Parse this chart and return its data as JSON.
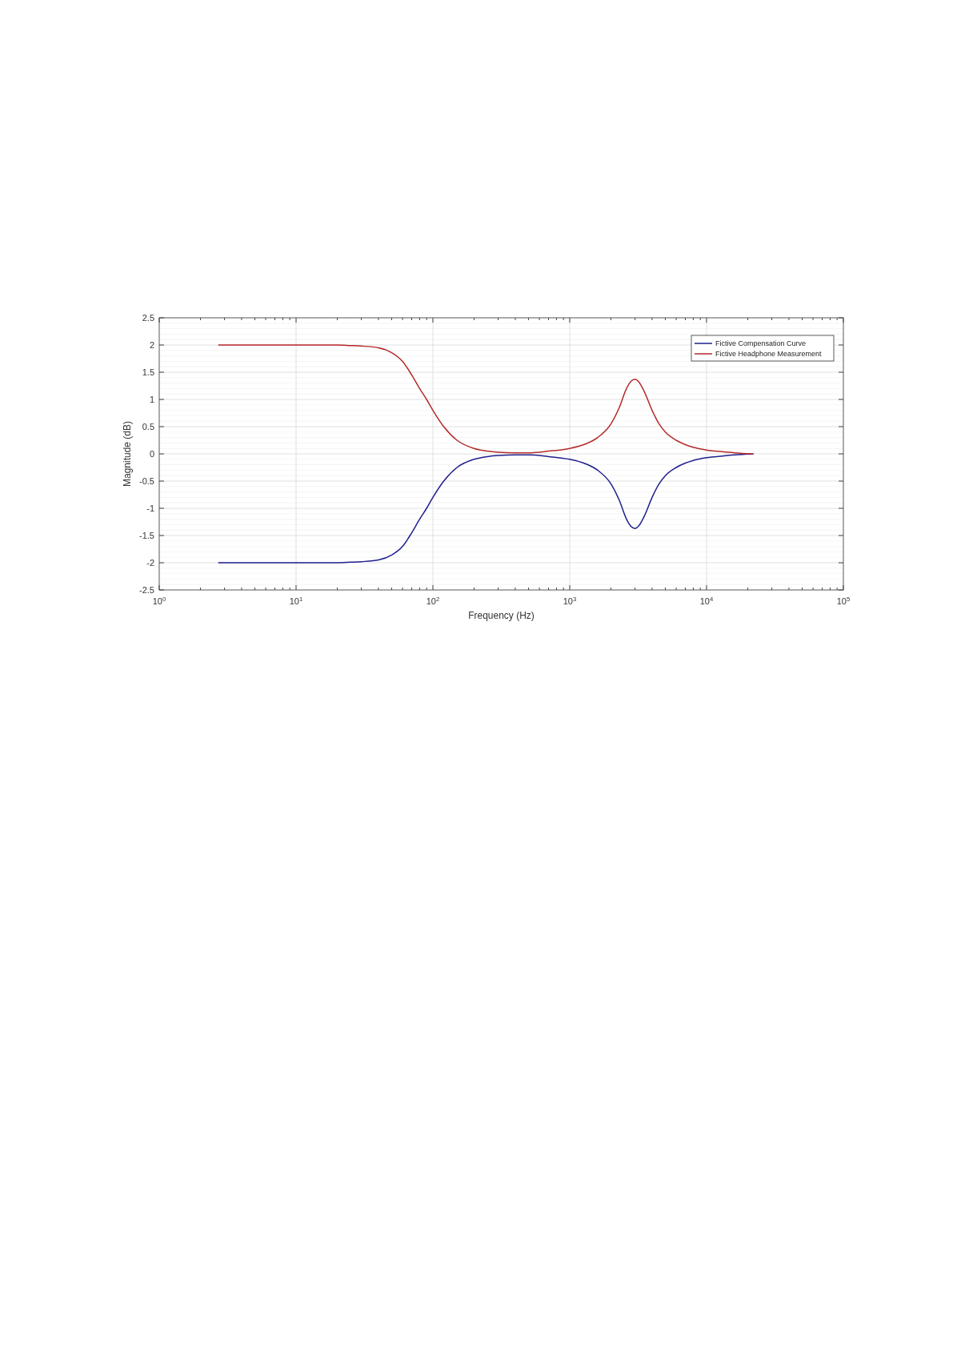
{
  "chart_data": {
    "type": "line",
    "xlabel": "Frequency (Hz)",
    "ylabel": "Magnitude (dB)",
    "log": "x",
    "xlim": [
      1,
      100000
    ],
    "xticks": [
      {
        "value": 1,
        "label": "10$^{0}$"
      },
      {
        "value": 10,
        "label": "10$^{1}$"
      },
      {
        "value": 100,
        "label": "10$^{2}$"
      },
      {
        "value": 1000,
        "label": "10$^{3}$"
      },
      {
        "value": 10000,
        "label": "10$^{4}$"
      },
      {
        "value": 100000,
        "label": "10$^{5}$"
      }
    ],
    "ylim": [
      -2.5,
      2.5
    ],
    "yticks": [
      -2.5,
      -2,
      -1.5,
      -1,
      -0.5,
      0,
      0.5,
      1,
      1.5,
      2,
      2.5
    ],
    "grid": true,
    "legend": "top right",
    "line_style": "solid",
    "x": [
      2.7,
      5,
      10,
      15,
      20,
      25,
      30,
      40,
      50,
      60,
      70,
      80,
      90,
      100,
      120,
      150,
      200,
      250,
      300,
      400,
      500,
      700,
      1000,
      1300,
      1600,
      2000,
      2300,
      2600,
      2800,
      3000,
      3200,
      3500,
      4000,
      4500,
      5000,
      6000,
      7000,
      8000,
      10000,
      13000,
      16000,
      22000
    ],
    "series": [
      {
        "name": "Fictive Compensation Curve",
        "color": "#1f1f8f",
        "values": [
          -2,
          -2,
          -2,
          -2,
          -2,
          -1.99,
          -1.98,
          -1.95,
          -1.86,
          -1.7,
          -1.45,
          -1.2,
          -1,
          -0.8,
          -0.5,
          -0.25,
          -0.1,
          -0.05,
          -0.03,
          -0.02,
          -0.02,
          -0.05,
          -0.1,
          -0.18,
          -0.3,
          -0.55,
          -0.85,
          -1.2,
          -1.33,
          -1.37,
          -1.32,
          -1.15,
          -0.8,
          -0.55,
          -0.4,
          -0.25,
          -0.17,
          -0.12,
          -0.07,
          -0.04,
          -0.02,
          0
        ]
      },
      {
        "name": "Fictive Headphone Measurement",
        "color": "#b52a2a",
        "values": [
          2,
          2,
          2,
          2,
          2,
          1.99,
          1.98,
          1.95,
          1.86,
          1.7,
          1.45,
          1.2,
          1,
          0.8,
          0.5,
          0.25,
          0.1,
          0.05,
          0.03,
          0.02,
          0.02,
          0.05,
          0.1,
          0.18,
          0.3,
          0.55,
          0.85,
          1.2,
          1.33,
          1.37,
          1.32,
          1.15,
          0.8,
          0.55,
          0.4,
          0.25,
          0.17,
          0.12,
          0.07,
          0.04,
          0.02,
          0
        ]
      }
    ]
  }
}
